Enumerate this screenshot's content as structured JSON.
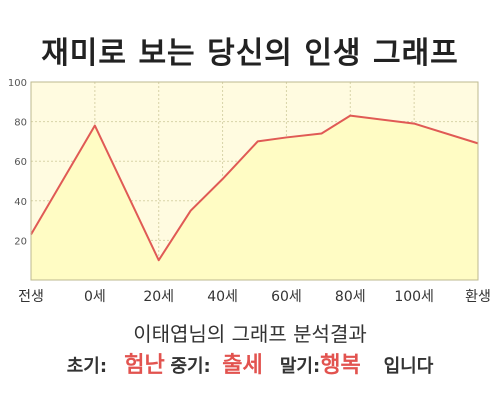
{
  "chart_data": {
    "type": "area",
    "title": "재미로 보는 당신의 인생 그래프",
    "x_labels": [
      "전생",
      "0세",
      "20세",
      "40세",
      "60세",
      "80세",
      "100세",
      "환생"
    ],
    "x": [
      0,
      1,
      2,
      3,
      4,
      5,
      6,
      7
    ],
    "y_ticks": [
      20,
      40,
      60,
      80,
      100
    ],
    "ylim": [
      0,
      100
    ],
    "points": [
      {
        "x": 0.0,
        "y": 23
      },
      {
        "x": 1.0,
        "y": 78
      },
      {
        "x": 2.0,
        "y": 10
      },
      {
        "x": 2.5,
        "y": 35
      },
      {
        "x": 3.0,
        "y": 51
      },
      {
        "x": 3.55,
        "y": 70
      },
      {
        "x": 4.0,
        "y": 72
      },
      {
        "x": 4.55,
        "y": 74
      },
      {
        "x": 5.0,
        "y": 83
      },
      {
        "x": 6.0,
        "y": 79
      },
      {
        "x": 7.0,
        "y": 69
      }
    ],
    "grid": true,
    "colors": {
      "line": "#e05a55",
      "fill": "#fffcc4",
      "plot_bg": "#fffbe0",
      "grid": "#d8d3a8"
    }
  },
  "footer": {
    "subtitle": "이태엽님의 그래프 분석결과",
    "early_label": "초기:",
    "early_value": "험난",
    "middle_label": "중기:",
    "middle_value": "출세",
    "late_label": "말기:",
    "late_value": "행복",
    "ending": "입니다"
  }
}
